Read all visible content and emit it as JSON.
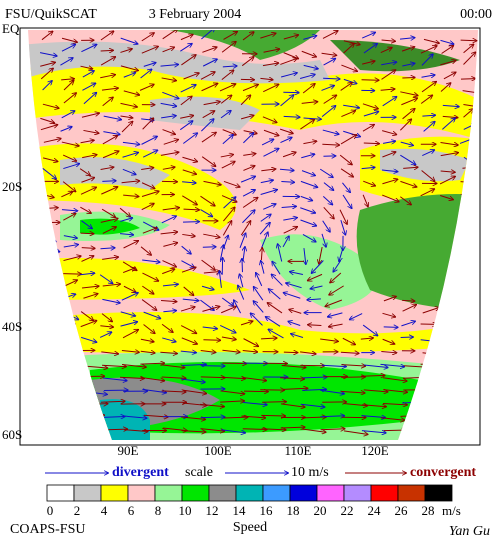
{
  "header": {
    "source": "FSU/QuikSCAT",
    "date": "3 February 2004",
    "time": "00:00"
  },
  "map": {
    "lat_labels": [
      "EQ",
      "20S",
      "40S",
      "60S"
    ],
    "lon_labels": [
      "90E",
      "100E",
      "110E",
      "120E"
    ]
  },
  "legend": {
    "divergent": "divergent",
    "scale": "scale",
    "scale_value": "10 m/s",
    "convergent": "convergent"
  },
  "colorbar": {
    "ticks": [
      0,
      2,
      4,
      6,
      8,
      10,
      12,
      14,
      16,
      18,
      20,
      22,
      24,
      26,
      28
    ],
    "unit": "m/s",
    "title": "Speed",
    "colors": [
      "#ffffff",
      "#c8c8c8",
      "#ffff00",
      "#ffc8c8",
      "#96f596",
      "#00e600",
      "#8c8c8c",
      "#00b4b4",
      "#3c9bff",
      "#0000dc",
      "#ff64ff",
      "#b48cff",
      "#ff0000",
      "#c83200",
      "#000000"
    ]
  },
  "footer": {
    "credit": "COAPS-FSU",
    "author": "Yan Gu"
  }
}
